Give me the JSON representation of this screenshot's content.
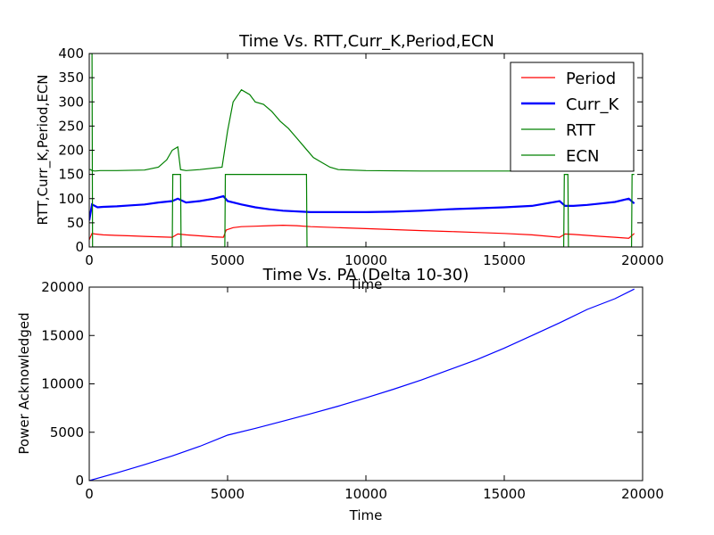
{
  "chart_data": [
    {
      "type": "line",
      "title": "Time Vs. RTT,Curr_K,Period,ECN",
      "xlabel": "Time",
      "ylabel": "RTT,Curr_K,Period,ECN",
      "xlim": [
        0,
        20000
      ],
      "ylim": [
        0,
        400
      ],
      "xticks": [
        "0",
        "5000",
        "10000",
        "15000",
        "20000"
      ],
      "yticks": [
        "0",
        "50",
        "100",
        "150",
        "200",
        "250",
        "300",
        "350",
        "400"
      ],
      "grid": false,
      "legend_position": "upper-right",
      "series": [
        {
          "name": "Period",
          "color": "#ff0000",
          "x": [
            0,
            100,
            200,
            500,
            1000,
            1500,
            2000,
            2500,
            3000,
            3200,
            3500,
            4000,
            4500,
            4850,
            4950,
            5200,
            5500,
            6000,
            6500,
            7000,
            7500,
            8000,
            9000,
            10000,
            11000,
            12000,
            13000,
            14000,
            15000,
            16000,
            17000,
            17200,
            17500,
            18000,
            18500,
            19000,
            19500,
            19700
          ],
          "y": [
            15,
            28,
            27,
            25,
            24,
            23,
            22,
            21,
            20,
            27,
            25,
            23,
            21,
            20,
            35,
            40,
            42,
            43,
            44,
            45,
            44,
            42,
            40,
            38,
            36,
            34,
            32,
            30,
            28,
            25,
            20,
            27,
            26,
            24,
            22,
            20,
            18,
            28
          ]
        },
        {
          "name": "Curr_K",
          "color": "#0000ff",
          "x": [
            0,
            100,
            300,
            500,
            1000,
            1500,
            2000,
            2500,
            3000,
            3200,
            3500,
            4000,
            4500,
            4850,
            5000,
            5500,
            6000,
            6500,
            7000,
            8000,
            9000,
            10000,
            11000,
            12000,
            13000,
            14000,
            15000,
            16000,
            17000,
            17200,
            17500,
            18000,
            18500,
            19000,
            19500,
            19700
          ],
          "y": [
            55,
            88,
            82,
            83,
            84,
            86,
            88,
            92,
            95,
            100,
            92,
            95,
            100,
            105,
            95,
            88,
            82,
            78,
            75,
            72,
            72,
            72,
            73,
            75,
            78,
            80,
            82,
            85,
            95,
            85,
            85,
            87,
            90,
            93,
            100,
            90
          ]
        },
        {
          "name": "RTT",
          "color": "#008000",
          "x": [
            0,
            50,
            100,
            200,
            400,
            1000,
            2000,
            2500,
            2800,
            3000,
            3200,
            3300,
            3500,
            4000,
            4800,
            5000,
            5200,
            5500,
            5800,
            6000,
            6300,
            6600,
            6900,
            7200,
            7500,
            7800,
            8100,
            8400,
            8700,
            9000,
            10000,
            12000,
            14000,
            16000,
            18000,
            19700
          ],
          "y": [
            160,
            160,
            158,
            157,
            158,
            158,
            159,
            165,
            180,
            200,
            207,
            160,
            158,
            160,
            165,
            240,
            300,
            325,
            315,
            300,
            295,
            280,
            260,
            245,
            225,
            205,
            185,
            175,
            165,
            160,
            158,
            157,
            157,
            157,
            157,
            158
          ]
        },
        {
          "name": "ECN",
          "color": "#008000",
          "x": [
            0,
            100,
            120,
            3000,
            3020,
            3300,
            3320,
            4900,
            4920,
            7850,
            7870,
            17150,
            17170,
            17300,
            17320,
            19600,
            19620,
            19700
          ],
          "y": [
            400,
            400,
            0,
            0,
            150,
            150,
            0,
            0,
            150,
            150,
            0,
            0,
            150,
            150,
            0,
            0,
            150,
            150
          ]
        }
      ]
    },
    {
      "type": "line",
      "title": "Time Vs. PA (Delta 10-30)",
      "xlabel": "Time",
      "ylabel": "Power Acknowledged",
      "xlim": [
        0,
        20000
      ],
      "ylim": [
        0,
        20000
      ],
      "xticks": [
        "0",
        "5000",
        "10000",
        "15000",
        "20000"
      ],
      "yticks": [
        "0",
        "5000",
        "10000",
        "15000",
        "20000"
      ],
      "grid": false,
      "series": [
        {
          "color": "#0000ff",
          "x": [
            0,
            1000,
            2000,
            3000,
            4000,
            5000,
            6000,
            7000,
            8000,
            9000,
            10000,
            11000,
            12000,
            13000,
            14000,
            15000,
            16000,
            17000,
            18000,
            19000,
            19700
          ],
          "y": [
            0,
            800,
            1650,
            2550,
            3550,
            4700,
            5400,
            6150,
            6900,
            7700,
            8550,
            9450,
            10400,
            11450,
            12500,
            13700,
            15000,
            16300,
            17700,
            18800,
            19800
          ]
        }
      ]
    }
  ]
}
